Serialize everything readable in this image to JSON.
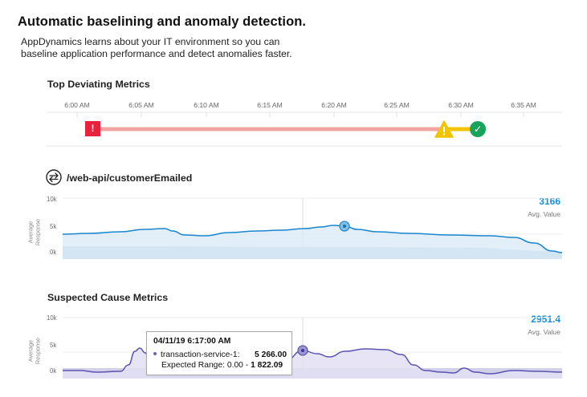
{
  "header": {
    "title": "Automatic baselining and anomaly detection.",
    "subtitle_line1": "AppDynamics learns about your IT environment so you can",
    "subtitle_line2": "baseline application performance and detect anomalies faster."
  },
  "timeline": {
    "title": "Top Deviating Metrics",
    "ticks": [
      "6:00 AM",
      "6:05 AM",
      "6:10 AM",
      "6:15 AM",
      "6:20 AM",
      "6:25 AM",
      "6:30 AM",
      "6:35 AM"
    ],
    "markers": [
      {
        "status": "critical",
        "glyph": "!",
        "color": "#e8223d"
      },
      {
        "status": "warning",
        "glyph": "!",
        "color": "#f2c400"
      },
      {
        "status": "ok",
        "glyph": "✓",
        "color": "#18a55b"
      }
    ],
    "colors": {
      "critical_bar": "#f4a3a3",
      "warning_bar": "#f2c400"
    }
  },
  "chart1": {
    "icon": "swap-arrows-icon",
    "title": "/web-api/customerEmailed",
    "y_label_line1": "Average",
    "y_label_line2": "Response",
    "y_ticks": [
      "10k",
      "5k",
      "0k"
    ],
    "avg_value": "3166",
    "avg_label": "Avg. Value"
  },
  "chart2": {
    "title": "Suspected Cause Metrics",
    "y_label_line1": "Average",
    "y_label_line2": "Response",
    "y_ticks": [
      "10k",
      "5k",
      "0k"
    ],
    "avg_value": "2951.4",
    "avg_label": "Avg. Value",
    "tooltip": {
      "timestamp": "04/11/19 6:17:00 AM",
      "series_label": "transaction-service-1:",
      "series_value": "5 266.00",
      "range_label": "Expected Range: 0.00 - ",
      "range_high": "1 822.09"
    }
  },
  "colors": {
    "accent": "#1d8fd6",
    "series2": "#5a54b0"
  }
}
